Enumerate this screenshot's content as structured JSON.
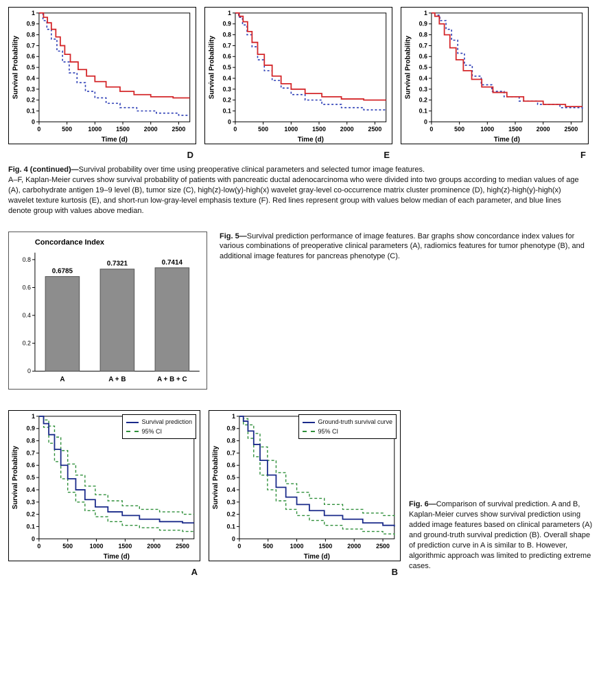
{
  "colors": {
    "red": "#d4272a",
    "blue": "#2b3db5",
    "navy": "#1a2a8a",
    "green": "#2f8f3a",
    "bar_fill": "#8d8d8d",
    "axis": "#000000"
  },
  "fig4": {
    "x_label": "Time (d)",
    "y_label": "Survival Probability",
    "x_lim": [
      0,
      2700
    ],
    "x_ticks": [
      0,
      500,
      1000,
      1500,
      2000,
      2500
    ],
    "y_lim": [
      0,
      1
    ],
    "y_ticks": [
      0,
      0.1,
      0.2,
      0.3,
      0.4,
      0.5,
      0.6,
      0.7,
      0.8,
      0.9,
      1
    ],
    "panels": {
      "D": {
        "red": [
          [
            0,
            1.0
          ],
          [
            80,
            0.96
          ],
          [
            150,
            0.91
          ],
          [
            220,
            0.85
          ],
          [
            300,
            0.78
          ],
          [
            380,
            0.7
          ],
          [
            460,
            0.62
          ],
          [
            560,
            0.55
          ],
          [
            700,
            0.48
          ],
          [
            850,
            0.42
          ],
          [
            1000,
            0.37
          ],
          [
            1200,
            0.32
          ],
          [
            1450,
            0.28
          ],
          [
            1700,
            0.25
          ],
          [
            2000,
            0.23
          ],
          [
            2400,
            0.22
          ],
          [
            2700,
            0.22
          ]
        ],
        "blue": [
          [
            0,
            1.0
          ],
          [
            70,
            0.93
          ],
          [
            140,
            0.85
          ],
          [
            220,
            0.76
          ],
          [
            320,
            0.65
          ],
          [
            420,
            0.55
          ],
          [
            540,
            0.45
          ],
          [
            680,
            0.36
          ],
          [
            830,
            0.28
          ],
          [
            1000,
            0.22
          ],
          [
            1200,
            0.17
          ],
          [
            1450,
            0.13
          ],
          [
            1750,
            0.1
          ],
          [
            2100,
            0.08
          ],
          [
            2500,
            0.06
          ],
          [
            2700,
            0.06
          ]
        ]
      },
      "E": {
        "red": [
          [
            0,
            1.0
          ],
          [
            70,
            0.97
          ],
          [
            140,
            0.92
          ],
          [
            220,
            0.83
          ],
          [
            300,
            0.73
          ],
          [
            400,
            0.62
          ],
          [
            520,
            0.52
          ],
          [
            660,
            0.42
          ],
          [
            820,
            0.35
          ],
          [
            1000,
            0.3
          ],
          [
            1250,
            0.26
          ],
          [
            1550,
            0.23
          ],
          [
            1900,
            0.21
          ],
          [
            2300,
            0.2
          ],
          [
            2700,
            0.2
          ]
        ],
        "blue": [
          [
            0,
            1.0
          ],
          [
            60,
            0.96
          ],
          [
            130,
            0.89
          ],
          [
            210,
            0.8
          ],
          [
            300,
            0.69
          ],
          [
            400,
            0.57
          ],
          [
            520,
            0.47
          ],
          [
            660,
            0.38
          ],
          [
            820,
            0.31
          ],
          [
            1000,
            0.25
          ],
          [
            1250,
            0.2
          ],
          [
            1550,
            0.16
          ],
          [
            1900,
            0.13
          ],
          [
            2300,
            0.11
          ],
          [
            2700,
            0.1
          ]
        ]
      },
      "F": {
        "red": [
          [
            0,
            1.0
          ],
          [
            60,
            0.97
          ],
          [
            140,
            0.9
          ],
          [
            230,
            0.8
          ],
          [
            330,
            0.68
          ],
          [
            440,
            0.57
          ],
          [
            570,
            0.47
          ],
          [
            720,
            0.39
          ],
          [
            900,
            0.32
          ],
          [
            1100,
            0.27
          ],
          [
            1350,
            0.23
          ],
          [
            1650,
            0.19
          ],
          [
            2000,
            0.16
          ],
          [
            2400,
            0.14
          ],
          [
            2700,
            0.14
          ]
        ],
        "blue": [
          [
            0,
            1.0
          ],
          [
            60,
            0.98
          ],
          [
            150,
            0.93
          ],
          [
            260,
            0.85
          ],
          [
            360,
            0.75
          ],
          [
            470,
            0.63
          ],
          [
            590,
            0.52
          ],
          [
            730,
            0.42
          ],
          [
            890,
            0.34
          ],
          [
            1080,
            0.28
          ],
          [
            1300,
            0.23
          ],
          [
            1570,
            0.19
          ],
          [
            1900,
            0.16
          ],
          [
            2300,
            0.13
          ],
          [
            2700,
            0.11
          ]
        ]
      }
    },
    "caption_title": "Fig. 4 (continued)—",
    "caption_body": "Survival probability over time using preoperative clinical parameters and selected tumor image features.",
    "caption_detail": "A–F, Kaplan-Meier curves show survival probability of patients with pancreatic ductal adenocarcinoma who were divided into two groups according to median values of age (A), carbohydrate antigen 19–9 level (B), tumor size (C), high(z)-low(y)-high(x) wavelet gray-level co-occurrence matrix cluster prominence (D), high(z)-high(y)-high(x) wavelet texture kurtosis (E), and short-run low-gray-level emphasis texture (F). Red lines represent group with values below median of each parameter, and blue lines denote group with values above median."
  },
  "fig5": {
    "title": "Concordance Index",
    "y_lim": [
      0,
      0.85
    ],
    "y_ticks": [
      0,
      0.2,
      0.4,
      0.6,
      0.8
    ],
    "bars": [
      {
        "label": "A",
        "value": 0.6785,
        "value_label": "0.6785"
      },
      {
        "label": "A + B",
        "value": 0.7321,
        "value_label": "0.7321"
      },
      {
        "label": "A + B + C",
        "value": 0.7414,
        "value_label": "0.7414"
      }
    ],
    "caption_title": "Fig. 5—",
    "caption_body": "Survival prediction performance of image features. Bar graphs show concordance index values for various combinations of preoperative clinical parameters (A), radiomics features for tumor phenotype (B), and additional image features for pancreas phenotype (C)."
  },
  "fig6": {
    "x_label": "Time (d)",
    "y_label": "Survival Probability",
    "x_lim": [
      0,
      2700
    ],
    "x_ticks": [
      0,
      500,
      1000,
      1500,
      2000,
      2500
    ],
    "y_lim": [
      0,
      1
    ],
    "y_ticks": [
      0,
      0.1,
      0.2,
      0.3,
      0.4,
      0.5,
      0.6,
      0.7,
      0.8,
      0.9,
      1
    ],
    "panels": {
      "A": {
        "legend": [
          {
            "label": "Survival prediction",
            "style": "solid",
            "color": "navy"
          },
          {
            "label": "95% CI",
            "style": "dash",
            "color": "green"
          }
        ],
        "main": [
          [
            0,
            1.0
          ],
          [
            80,
            0.94
          ],
          [
            170,
            0.85
          ],
          [
            270,
            0.73
          ],
          [
            380,
            0.6
          ],
          [
            500,
            0.49
          ],
          [
            640,
            0.4
          ],
          [
            800,
            0.32
          ],
          [
            980,
            0.26
          ],
          [
            1200,
            0.22
          ],
          [
            1450,
            0.19
          ],
          [
            1750,
            0.16
          ],
          [
            2100,
            0.14
          ],
          [
            2500,
            0.13
          ],
          [
            2700,
            0.13
          ]
        ],
        "upper": [
          [
            0,
            1.0
          ],
          [
            80,
            0.97
          ],
          [
            170,
            0.92
          ],
          [
            270,
            0.83
          ],
          [
            380,
            0.72
          ],
          [
            500,
            0.61
          ],
          [
            640,
            0.52
          ],
          [
            800,
            0.43
          ],
          [
            980,
            0.36
          ],
          [
            1200,
            0.31
          ],
          [
            1450,
            0.27
          ],
          [
            1750,
            0.24
          ],
          [
            2100,
            0.22
          ],
          [
            2500,
            0.2
          ],
          [
            2700,
            0.2
          ]
        ],
        "lower": [
          [
            0,
            1.0
          ],
          [
            80,
            0.91
          ],
          [
            170,
            0.78
          ],
          [
            270,
            0.63
          ],
          [
            380,
            0.49
          ],
          [
            500,
            0.38
          ],
          [
            640,
            0.3
          ],
          [
            800,
            0.23
          ],
          [
            980,
            0.18
          ],
          [
            1200,
            0.14
          ],
          [
            1450,
            0.11
          ],
          [
            1750,
            0.09
          ],
          [
            2100,
            0.07
          ],
          [
            2500,
            0.06
          ],
          [
            2700,
            0.06
          ]
        ]
      },
      "B": {
        "legend": [
          {
            "label": "Ground-truth survival curve",
            "style": "solid",
            "color": "navy"
          },
          {
            "label": "95% CI",
            "style": "dash",
            "color": "green"
          }
        ],
        "main": [
          [
            0,
            1.0
          ],
          [
            70,
            0.96
          ],
          [
            150,
            0.88
          ],
          [
            250,
            0.77
          ],
          [
            360,
            0.64
          ],
          [
            490,
            0.52
          ],
          [
            640,
            0.42
          ],
          [
            810,
            0.34
          ],
          [
            1000,
            0.28
          ],
          [
            1220,
            0.23
          ],
          [
            1480,
            0.19
          ],
          [
            1800,
            0.16
          ],
          [
            2150,
            0.13
          ],
          [
            2500,
            0.11
          ],
          [
            2700,
            0.1
          ]
        ],
        "upper": [
          [
            0,
            1.0
          ],
          [
            70,
            0.98
          ],
          [
            150,
            0.93
          ],
          [
            250,
            0.86
          ],
          [
            360,
            0.75
          ],
          [
            490,
            0.64
          ],
          [
            640,
            0.54
          ],
          [
            810,
            0.45
          ],
          [
            1000,
            0.38
          ],
          [
            1220,
            0.33
          ],
          [
            1480,
            0.28
          ],
          [
            1800,
            0.24
          ],
          [
            2150,
            0.21
          ],
          [
            2500,
            0.19
          ],
          [
            2700,
            0.18
          ]
        ],
        "lower": [
          [
            0,
            1.0
          ],
          [
            70,
            0.93
          ],
          [
            150,
            0.82
          ],
          [
            250,
            0.67
          ],
          [
            360,
            0.52
          ],
          [
            490,
            0.4
          ],
          [
            640,
            0.31
          ],
          [
            810,
            0.24
          ],
          [
            1000,
            0.19
          ],
          [
            1220,
            0.15
          ],
          [
            1480,
            0.11
          ],
          [
            1800,
            0.08
          ],
          [
            2150,
            0.06
          ],
          [
            2500,
            0.04
          ],
          [
            2700,
            0.03
          ]
        ]
      }
    },
    "caption_title": "Fig. 6—",
    "caption_body": "Comparison of survival prediction. A and B, Kaplan-Meier curves show survival prediction using added image features based on clinical parameters (A) and ground-truth survival prediction (B). Overall shape of prediction curve in A is similar to B. However, algorithmic approach was limited to predicting extreme cases."
  }
}
